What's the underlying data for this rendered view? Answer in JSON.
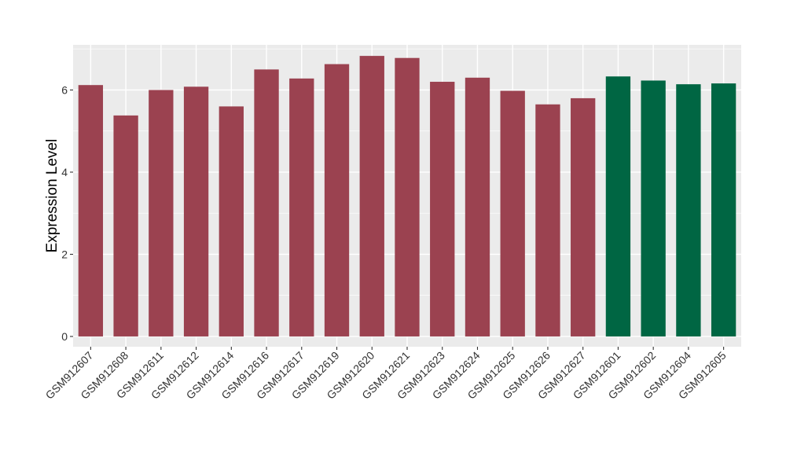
{
  "chart_data": {
    "type": "bar",
    "ylabel": "Expression Level",
    "xlabel": "",
    "ylim": [
      -0.25,
      7.1
    ],
    "yticks": [
      0,
      2,
      4,
      6
    ],
    "grid": true,
    "background": "#ebebeb",
    "grid_color": "#ffffff",
    "colors": {
      "group_a": "#9b4250",
      "group_b": "#006643"
    },
    "categories": [
      "GSM912607",
      "GSM912608",
      "GSM912611",
      "GSM912612",
      "GSM912614",
      "GSM912616",
      "GSM912617",
      "GSM912619",
      "GSM912620",
      "GSM912621",
      "GSM912623",
      "GSM912624",
      "GSM912625",
      "GSM912626",
      "GSM912627",
      "GSM912601",
      "GSM912602",
      "GSM912604",
      "GSM912605"
    ],
    "values": [
      6.12,
      5.38,
      6.0,
      6.08,
      5.6,
      6.5,
      6.28,
      6.63,
      6.83,
      6.78,
      6.2,
      6.3,
      5.98,
      5.65,
      5.8,
      6.33,
      6.23,
      6.14,
      6.16
    ],
    "groups": [
      "a",
      "a",
      "a",
      "a",
      "a",
      "a",
      "a",
      "a",
      "a",
      "a",
      "a",
      "a",
      "a",
      "a",
      "a",
      "b",
      "b",
      "b",
      "b"
    ]
  }
}
